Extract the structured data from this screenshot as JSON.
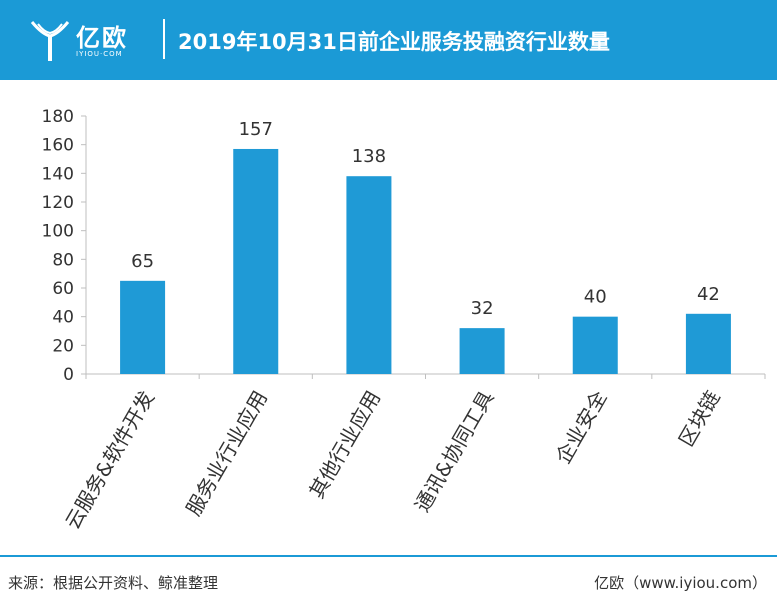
{
  "header": {
    "brand": "亿欧",
    "brand_sub": "IYIOU·COM",
    "title": "2019年10月31日前企业服务投融资行业数量"
  },
  "colors": {
    "brand": "#1b9ad6",
    "bar": "#1f9ad6",
    "axis": "#bfbfbf",
    "text": "#333333"
  },
  "chart_data": {
    "type": "bar",
    "title": "2019年10月31日前企业服务投融资行业数量",
    "categories": [
      "云服务&软件开发",
      "服务业行业应用",
      "其他行业应用",
      "通讯&协同工具",
      "企业安全",
      "区块链"
    ],
    "values": [
      65,
      157,
      138,
      32,
      40,
      42
    ],
    "data_labels": [
      "65",
      "157",
      "138",
      "32",
      "40",
      "42"
    ],
    "xlabel": "",
    "ylabel": "",
    "ylim": [
      0,
      180
    ],
    "yticks": [
      0,
      20,
      40,
      60,
      80,
      100,
      120,
      140,
      160,
      180
    ],
    "grid": false,
    "legend": "none"
  },
  "footer": {
    "source": "来源：根据公开资料、鲸准整理",
    "site": "亿欧（www.iyiou.com）"
  }
}
